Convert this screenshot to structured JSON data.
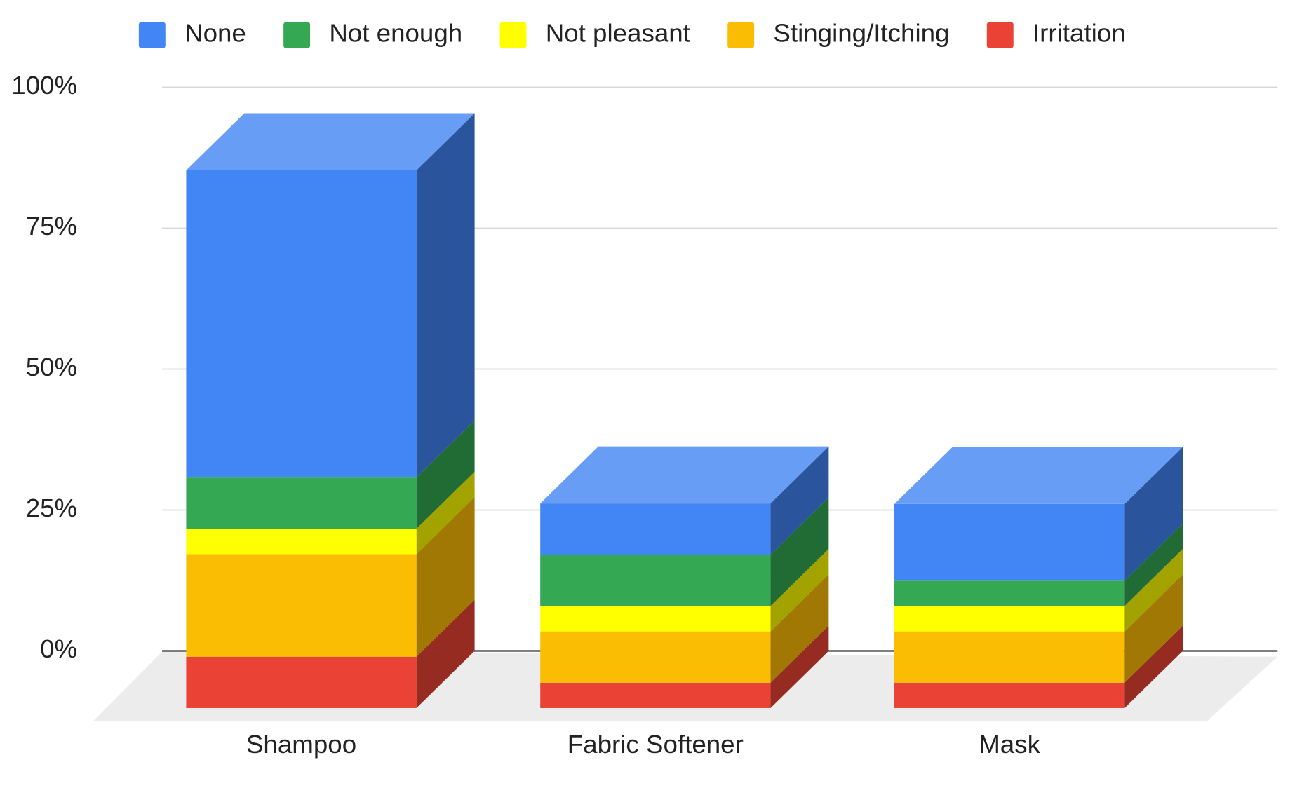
{
  "chart_data": {
    "type": "bar3d_stacked",
    "categories": [
      "Shampoo",
      "Fabric Softener",
      "Mask"
    ],
    "series": [
      {
        "name": "None",
        "color": "#4285f4",
        "values": [
          54.5,
          9.1,
          13.6
        ]
      },
      {
        "name": "Not enough",
        "color": "#34a853",
        "values": [
          9.1,
          9.1,
          4.5
        ]
      },
      {
        "name": "Not pleasant",
        "color": "#ffff00",
        "values": [
          4.5,
          4.5,
          4.5
        ]
      },
      {
        "name": "Stinging/Itching",
        "color": "#fbbc04",
        "values": [
          18.2,
          9.1,
          9.1
        ]
      },
      {
        "name": "Irritation",
        "color": "#ea4335",
        "values": [
          9.1,
          4.5,
          4.5
        ]
      }
    ],
    "ylim": [
      0,
      100
    ],
    "yticks": [
      {
        "value": 0,
        "label": "0%"
      },
      {
        "value": 25,
        "label": "25%"
      },
      {
        "value": 50,
        "label": "50%"
      },
      {
        "value": 75,
        "label": "75%"
      },
      {
        "value": 100,
        "label": "100%"
      }
    ],
    "grid": true,
    "legend": "top"
  }
}
